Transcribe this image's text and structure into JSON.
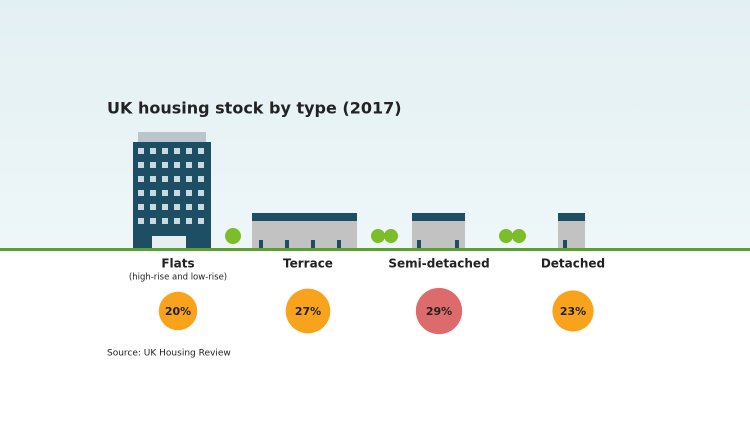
{
  "chart_data": {
    "type": "bubble",
    "title": "UK housing stock by type (2017)",
    "categories": [
      "Flats",
      "Terrace",
      "Semi-detached",
      "Detached"
    ],
    "category_notes": [
      "(high-rise and low-rise)",
      null,
      null,
      null
    ],
    "values": [
      20,
      27,
      29,
      23
    ],
    "value_labels": [
      "20%",
      "27%",
      "29%",
      "23%"
    ],
    "colors": [
      "#f9a21c",
      "#f9a21c",
      "#dd6b6b",
      "#f9a21c"
    ],
    "source": "Source: UK Housing Review"
  }
}
